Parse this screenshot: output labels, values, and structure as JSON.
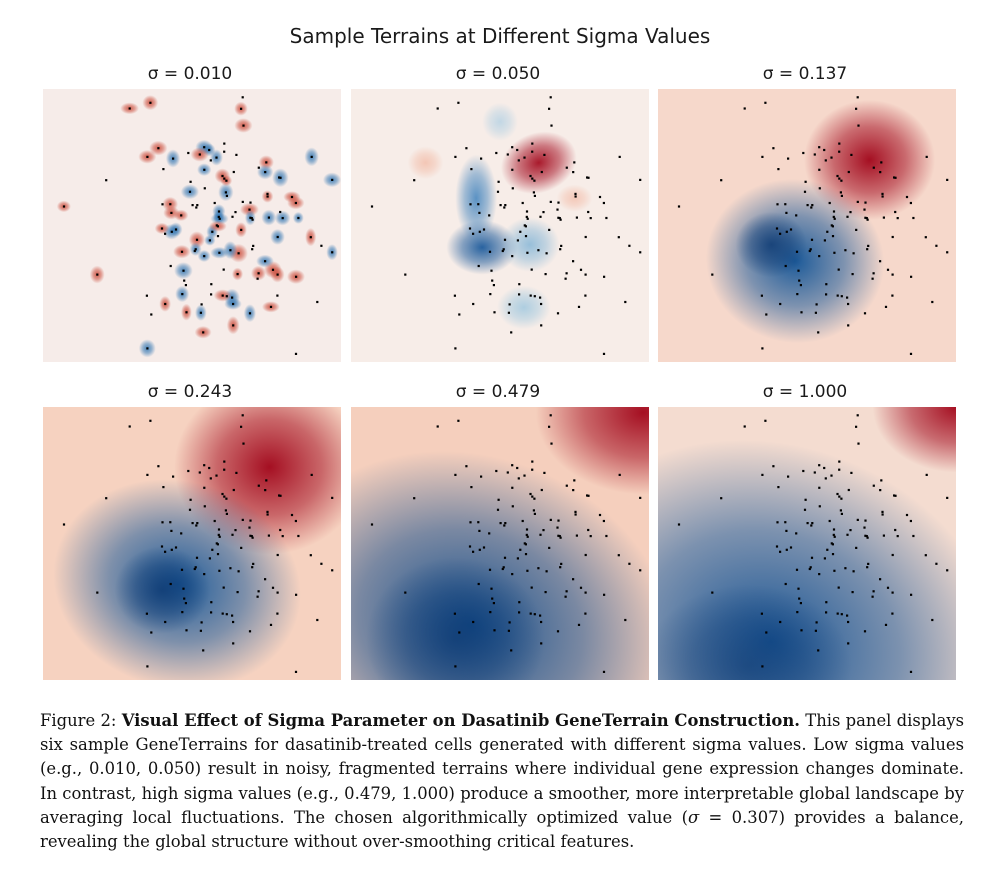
{
  "figure": {
    "suptitle": "Sample Terrains at Different Sigma Values",
    "panels": [
      {
        "title": "σ = 0.010",
        "sigma": 0.01
      },
      {
        "title": "σ = 0.050",
        "sigma": 0.05
      },
      {
        "title": "σ = 0.137",
        "sigma": 0.137
      },
      {
        "title": "σ = 0.243",
        "sigma": 0.243
      },
      {
        "title": "σ = 0.479",
        "sigma": 0.479
      },
      {
        "title": "σ = 1.000",
        "sigma": 1.0
      }
    ],
    "colors": {
      "high": "#67001f",
      "mid": "#f7f7f7",
      "low": "#053061",
      "point": "#000000"
    }
  },
  "caption": {
    "label": "Figure 2:",
    "bold_title": "Visual Effect of Sigma Parameter on Dasatinib GeneTerrain Construction.",
    "text_1": "This panel displays six sample GeneTerrains for dasatinib-treated cells generated with different sigma values. Low sigma values (e.g., 0.010, 0.050) result in noisy, fragmented terrains where individual gene expression changes dominate. In contrast, high sigma values (e.g., 0.479, 1.000) produce a smoother, more interpretable global landscape by averaging local fluctuations. The chosen algorithmically optimized value (",
    "math_sigma": "σ",
    "math_value": " = 0.307",
    "text_2": ") provides a balance, revealing the global structure without over-smoothing critical features."
  }
}
